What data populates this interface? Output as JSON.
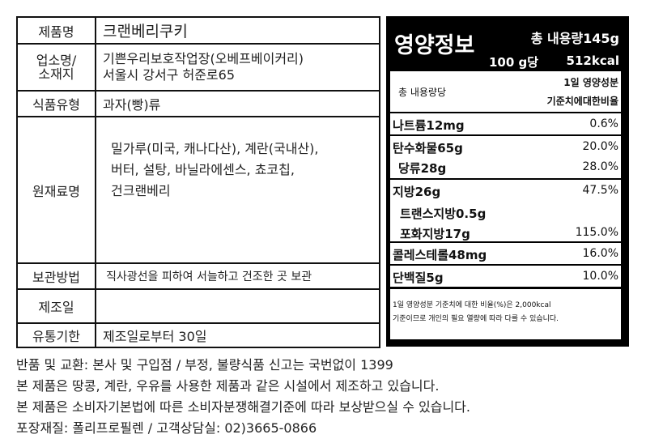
{
  "info": {
    "rows": [
      {
        "label": "제품명",
        "value": "크랜베리쿠키"
      },
      {
        "label": "업소명/\n소재지",
        "value_lines": [
          "기쁜우리보호작업장(오베프베이커리)",
          "서울시 강서구 허준로65"
        ]
      },
      {
        "label": "식품유형",
        "value": "과자(빵)류"
      },
      {
        "label": "원재료명",
        "value_lines": [
          "밀가루(미국, 캐나다산), 계란(국내산),",
          "버터, 설탕, 바닐라에센스, 쵸코칩,",
          "건크랜베리"
        ]
      },
      {
        "label": "보관방법",
        "value": "직사광선을 피하여 서늘하고 건조한 곳 보관"
      },
      {
        "label": "제조일",
        "value": ""
      },
      {
        "label": "유통기한",
        "value": "제조일로부터 30일"
      }
    ]
  },
  "nutrition": {
    "title": "영양정보",
    "total": "총 내용량145g",
    "per": "100 g당",
    "kcal": "512kcal",
    "col_left": "총 내용량당",
    "col_right1": "1일 영양성분",
    "col_right2": "기준치에대한비율",
    "items": [
      {
        "name": "나트륨12mg",
        "pct": "0.6%"
      },
      {
        "name": "탄수화물65g",
        "pct": "20.0%"
      },
      {
        "name": "당류28g",
        "pct": "28.0%"
      },
      {
        "name": "지방26g",
        "pct": "47.5%"
      },
      {
        "name": "트랜스지방0.5g",
        "pct": ""
      },
      {
        "name": "포화지방17g",
        "pct": "115.0%"
      },
      {
        "name": "콜레스테롤48mg",
        "pct": "16.0%"
      },
      {
        "name": "단백질5g",
        "pct": "10.0%"
      }
    ],
    "note1": "1일 영양성분 기준치에 대한 비율(%)은 2,000kcal",
    "note2": "기준이므로 개인의 필요 열량에 따라 다를 수 있습니다."
  },
  "footer": [
    "반품 및 교환: 본사 및 구입점 / 부정, 불량식품 신고는 국번없이 1399",
    "본 제품은 땅콩, 계란, 우유를 사용한 제품과 같은 시설에서 제조하고 있습니다.",
    "본 제품은 소비자기본법에 따른 소비자분쟁해결기준에 따라 보상받으실 수 있습니다.",
    "포장재질: 폴리프로필렌 / 고객상담실: 02)3665-0866"
  ]
}
